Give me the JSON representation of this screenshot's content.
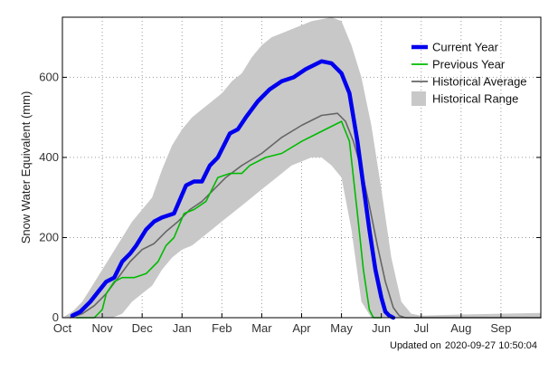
{
  "chart_data": {
    "type": "area",
    "ylabel": "Snow Water Equivalent (mm)",
    "ylim": [
      0,
      750
    ],
    "yticks": [
      0,
      200,
      400,
      600
    ],
    "xlim": [
      0,
      12
    ],
    "months": [
      "Oct",
      "Nov",
      "Dec",
      "Jan",
      "Feb",
      "Mar",
      "Apr",
      "May",
      "Jun",
      "Jul",
      "Aug",
      "Sep"
    ],
    "grid": true,
    "legend_position": "top-right",
    "series": [
      {
        "name": "Current Year",
        "kind": "line",
        "color": "#0000ee",
        "points": [
          [
            0.25,
            5
          ],
          [
            0.45,
            15
          ],
          [
            0.7,
            40
          ],
          [
            0.9,
            65
          ],
          [
            1.1,
            90
          ],
          [
            1.3,
            100
          ],
          [
            1.5,
            140
          ],
          [
            1.7,
            160
          ],
          [
            1.85,
            180
          ],
          [
            2.1,
            220
          ],
          [
            2.3,
            240
          ],
          [
            2.5,
            250
          ],
          [
            2.8,
            260
          ],
          [
            3.1,
            330
          ],
          [
            3.3,
            340
          ],
          [
            3.5,
            340
          ],
          [
            3.7,
            380
          ],
          [
            3.9,
            400
          ],
          [
            4.2,
            460
          ],
          [
            4.4,
            470
          ],
          [
            4.6,
            500
          ],
          [
            4.9,
            540
          ],
          [
            5.2,
            570
          ],
          [
            5.5,
            590
          ],
          [
            5.8,
            600
          ],
          [
            6.1,
            620
          ],
          [
            6.3,
            630
          ],
          [
            6.5,
            640
          ],
          [
            6.75,
            635
          ],
          [
            7.0,
            610
          ],
          [
            7.2,
            560
          ],
          [
            7.4,
            440
          ],
          [
            7.55,
            330
          ],
          [
            7.7,
            220
          ],
          [
            7.85,
            120
          ],
          [
            8.0,
            50
          ],
          [
            8.1,
            15
          ],
          [
            8.2,
            5
          ],
          [
            8.3,
            0
          ]
        ]
      },
      {
        "name": "Previous Year",
        "kind": "line",
        "color": "#00bb00",
        "points": [
          [
            0.35,
            0
          ],
          [
            0.8,
            0
          ],
          [
            1.0,
            20
          ],
          [
            1.1,
            60
          ],
          [
            1.3,
            90
          ],
          [
            1.5,
            100
          ],
          [
            1.8,
            100
          ],
          [
            2.1,
            110
          ],
          [
            2.4,
            140
          ],
          [
            2.6,
            180
          ],
          [
            2.8,
            200
          ],
          [
            3.05,
            260
          ],
          [
            3.3,
            270
          ],
          [
            3.6,
            290
          ],
          [
            3.9,
            350
          ],
          [
            4.2,
            360
          ],
          [
            4.5,
            360
          ],
          [
            4.7,
            380
          ],
          [
            5.1,
            400
          ],
          [
            5.5,
            410
          ],
          [
            6.0,
            440
          ],
          [
            6.4,
            460
          ],
          [
            6.8,
            480
          ],
          [
            7.0,
            490
          ],
          [
            7.2,
            440
          ],
          [
            7.4,
            260
          ],
          [
            7.55,
            120
          ],
          [
            7.7,
            20
          ],
          [
            7.8,
            0
          ],
          [
            8.0,
            0
          ]
        ]
      },
      {
        "name": "Historical Average",
        "kind": "line",
        "color": "#666666",
        "points": [
          [
            0.2,
            0
          ],
          [
            0.5,
            10
          ],
          [
            0.8,
            30
          ],
          [
            1.1,
            60
          ],
          [
            1.4,
            100
          ],
          [
            1.7,
            140
          ],
          [
            2.0,
            170
          ],
          [
            2.3,
            185
          ],
          [
            2.6,
            215
          ],
          [
            2.9,
            240
          ],
          [
            3.2,
            270
          ],
          [
            3.5,
            290
          ],
          [
            3.8,
            320
          ],
          [
            4.1,
            350
          ],
          [
            4.5,
            380
          ],
          [
            5.0,
            410
          ],
          [
            5.5,
            450
          ],
          [
            6.0,
            480
          ],
          [
            6.5,
            505
          ],
          [
            6.9,
            510
          ],
          [
            7.1,
            490
          ],
          [
            7.3,
            440
          ],
          [
            7.5,
            370
          ],
          [
            7.7,
            280
          ],
          [
            7.9,
            180
          ],
          [
            8.1,
            90
          ],
          [
            8.3,
            25
          ],
          [
            8.45,
            5
          ],
          [
            8.6,
            0
          ],
          [
            12,
            0
          ]
        ]
      },
      {
        "name": "Historical Range",
        "kind": "band",
        "color": "#c8c8c8",
        "x": [
          0,
          0.25,
          0.5,
          0.75,
          1.0,
          1.25,
          1.5,
          1.75,
          2.0,
          2.25,
          2.5,
          2.75,
          3.0,
          3.25,
          3.5,
          3.75,
          4.0,
          4.25,
          4.5,
          4.75,
          5.0,
          5.25,
          5.5,
          5.75,
          6.0,
          6.25,
          6.5,
          6.75,
          7.0,
          7.25,
          7.5,
          7.75,
          8.0,
          8.25,
          8.5,
          8.75,
          9.0,
          10.0,
          11.0,
          12.0
        ],
        "upper": [
          0,
          15,
          40,
          80,
          120,
          160,
          200,
          240,
          270,
          300,
          370,
          430,
          470,
          500,
          520,
          540,
          560,
          590,
          610,
          650,
          680,
          700,
          710,
          720,
          730,
          740,
          745,
          750,
          740,
          680,
          600,
          480,
          320,
          150,
          40,
          10,
          5,
          8,
          10,
          12
        ],
        "lower": [
          0,
          0,
          0,
          0,
          0,
          0,
          10,
          40,
          60,
          80,
          120,
          150,
          170,
          180,
          200,
          220,
          240,
          260,
          280,
          300,
          320,
          340,
          360,
          380,
          390,
          400,
          400,
          380,
          350,
          220,
          40,
          0,
          0,
          0,
          0,
          0,
          0,
          0,
          0,
          0
        ]
      }
    ]
  },
  "footer": {
    "updated_label": "Updated on",
    "updated_value": "2020-09-27 10:50:04"
  }
}
